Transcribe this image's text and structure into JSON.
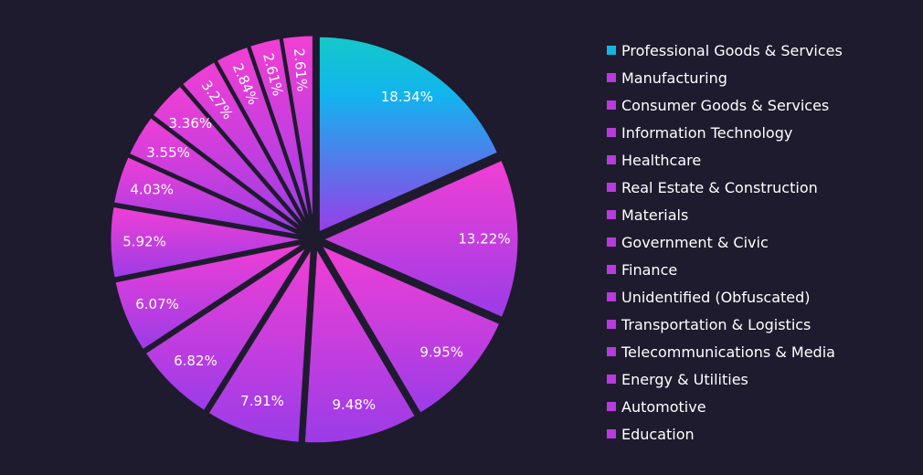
{
  "colors": {
    "background": "#1e1b2e",
    "gradient_pink": "#f23fd4",
    "gradient_purple": "#9a3ce8",
    "gradient_cyan": "#14c9c9",
    "gradient_blue": "#1aa6ee",
    "label_text": "#ffffff"
  },
  "chart_data": {
    "type": "pie",
    "title": "",
    "legend_position": "right",
    "slices": [
      {
        "label": "Professional Goods & Services",
        "value": 18.34,
        "display": "18.34%",
        "color": "#14b6e0"
      },
      {
        "label": "Manufacturing",
        "value": 13.22,
        "display": "13.22%",
        "color": "#b93ade"
      },
      {
        "label": "Consumer Goods & Services",
        "value": 9.95,
        "display": "9.95%",
        "color": "#b93ade"
      },
      {
        "label": "Information Technology",
        "value": 9.48,
        "display": "9.48%",
        "color": "#b93ade"
      },
      {
        "label": "Healthcare",
        "value": 7.91,
        "display": "7.91%",
        "color": "#b93ade"
      },
      {
        "label": "Real Estate & Construction",
        "value": 6.82,
        "display": "6.82%",
        "color": "#b93ade"
      },
      {
        "label": "Materials",
        "value": 6.07,
        "display": "6.07%",
        "color": "#b93ade"
      },
      {
        "label": "Government & Civic",
        "value": 5.92,
        "display": "5.92%",
        "color": "#b93ade"
      },
      {
        "label": "Finance",
        "value": 4.03,
        "display": "4.03%",
        "color": "#b93ade"
      },
      {
        "label": "Unidentified (Obfuscated)",
        "value": 3.55,
        "display": "3.55%",
        "color": "#b93ade"
      },
      {
        "label": "Transportation & Logistics",
        "value": 3.36,
        "display": "3.36%",
        "color": "#b93ade"
      },
      {
        "label": "Telecommunications & Media",
        "value": 3.27,
        "display": "3.27%",
        "color": "#b93ade"
      },
      {
        "label": "Energy & Utilities",
        "value": 2.84,
        "display": "2.84%",
        "color": "#b93ade"
      },
      {
        "label": "Automotive",
        "value": 2.61,
        "display": "2.61%",
        "color": "#b93ade"
      },
      {
        "label": "Education",
        "value": 2.61,
        "display": "2.61%",
        "color": "#b93ade"
      }
    ]
  }
}
